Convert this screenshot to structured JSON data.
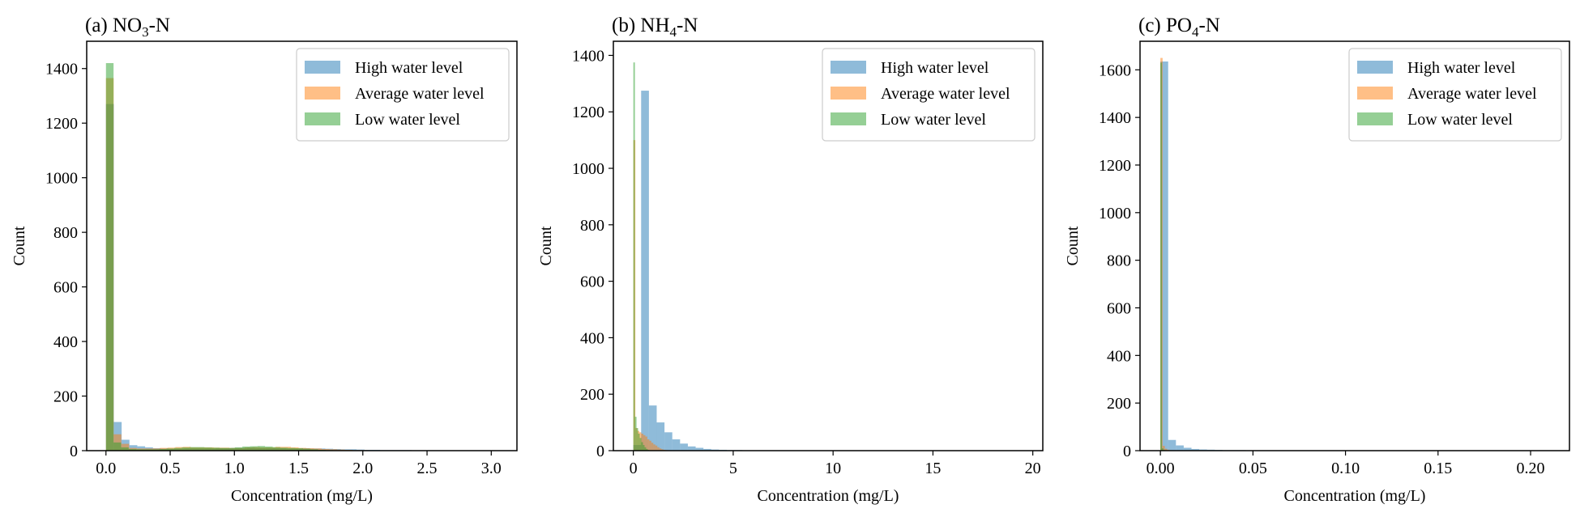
{
  "colors": {
    "high": "#1f77b4",
    "average": "#ff7f0e",
    "low": "#2ca02c"
  },
  "chart_data": [
    {
      "type": "bar",
      "title_prefix": "(a) NO",
      "title_sub": "3",
      "title_suffix": "-N",
      "xlabel": "Concentration (mg/L)",
      "ylabel": "Count",
      "xlim": [
        -0.15,
        3.2
      ],
      "ylim": [
        0,
        1500
      ],
      "xticks": [
        "0.0",
        "0.5",
        "1.0",
        "1.5",
        "2.0",
        "2.5",
        "3.0"
      ],
      "xtick_values": [
        0,
        0.5,
        1.0,
        1.5,
        2.0,
        2.5,
        3.0
      ],
      "yticks": [
        "0",
        "200",
        "400",
        "600",
        "800",
        "1000",
        "1200",
        "1400"
      ],
      "ytick_values": [
        0,
        200,
        400,
        600,
        800,
        1000,
        1200,
        1400
      ],
      "legend": "top-right",
      "series": [
        {
          "name": "High water level",
          "color_key": "high",
          "bin_start": 0,
          "bin_width": 0.061,
          "values": [
            1270,
            105,
            40,
            20,
            16,
            12,
            9,
            8,
            7,
            7,
            8,
            8,
            8,
            8,
            9,
            9,
            10,
            10,
            11,
            10,
            10,
            9,
            9,
            8,
            8,
            9,
            8,
            8,
            7,
            6,
            5,
            5,
            4,
            3,
            3,
            2,
            2,
            2,
            2,
            1,
            1,
            1,
            1,
            1,
            1,
            1,
            1,
            1,
            1,
            1
          ]
        },
        {
          "name": "Average water level",
          "color_key": "average",
          "bin_start": 0,
          "bin_width": 0.06,
          "values": [
            1365,
            60,
            25,
            10,
            8,
            8,
            8,
            10,
            11,
            13,
            14,
            12,
            12,
            12,
            11,
            11,
            10,
            10,
            12,
            13,
            12,
            12,
            14,
            14,
            12,
            10,
            9,
            8,
            6,
            5,
            4,
            3,
            2,
            2,
            1,
            1,
            1
          ]
        },
        {
          "name": "Low water level",
          "color_key": "low",
          "bin_start": 0,
          "bin_width": 0.059,
          "values": [
            1420,
            30,
            12,
            6,
            5,
            5,
            5,
            6,
            8,
            10,
            12,
            13,
            13,
            12,
            11,
            10,
            10,
            12,
            15,
            16,
            17,
            15,
            13,
            11,
            10,
            9,
            7,
            5,
            3,
            2,
            1
          ]
        }
      ]
    },
    {
      "type": "bar",
      "title_prefix": "(b) NH",
      "title_sub": "4",
      "title_suffix": "-N",
      "xlabel": "Concentration (mg/L)",
      "ylabel": "Count",
      "xlim": [
        -1.0,
        20.5
      ],
      "ylim": [
        0,
        1450
      ],
      "xticks": [
        "0",
        "5",
        "10",
        "15",
        "20"
      ],
      "xtick_values": [
        0,
        5,
        10,
        15,
        20
      ],
      "yticks": [
        "0",
        "200",
        "400",
        "600",
        "800",
        "1000",
        "1200",
        "1400"
      ],
      "ytick_values": [
        0,
        200,
        400,
        600,
        800,
        1000,
        1200,
        1400
      ],
      "legend": "top-right",
      "series": [
        {
          "name": "High water level",
          "color_key": "high",
          "bin_start": 0,
          "bin_width": 0.39,
          "values": [
            20,
            1275,
            160,
            100,
            65,
            40,
            25,
            15,
            10,
            6,
            4,
            3,
            2,
            2,
            1,
            1,
            1,
            1,
            1,
            1,
            1,
            1,
            0,
            0,
            0,
            0,
            0,
            0,
            0,
            0,
            0,
            0,
            0,
            0,
            0,
            0,
            0,
            0,
            0,
            0,
            0,
            0,
            0,
            0,
            0,
            0,
            0,
            0,
            0,
            1
          ]
        },
        {
          "name": "Average water level",
          "color_key": "average",
          "bin_start": 0,
          "bin_width": 0.1,
          "values": [
            1100,
            80,
            70,
            65,
            60,
            55,
            50,
            40,
            35,
            28,
            22,
            18,
            12,
            8,
            5,
            3,
            2,
            1
          ]
        },
        {
          "name": "Low water level",
          "color_key": "low",
          "bin_start": 0,
          "bin_width": 0.08,
          "values": [
            1375,
            120,
            80,
            60,
            45,
            30,
            20,
            12,
            6,
            3
          ]
        }
      ]
    },
    {
      "type": "bar",
      "title_prefix": "(c) PO",
      "title_sub": "4",
      "title_suffix": "-N",
      "xlabel": "Concentration (mg/L)",
      "ylabel": "Count",
      "xlim": [
        -0.011,
        0.221
      ],
      "ylim": [
        0,
        1720
      ],
      "xticks": [
        "0.00",
        "0.05",
        "0.10",
        "0.15",
        "0.20"
      ],
      "xtick_values": [
        0,
        0.05,
        0.1,
        0.15,
        0.2
      ],
      "yticks": [
        "0",
        "200",
        "400",
        "600",
        "800",
        "1000",
        "1200",
        "1400",
        "1600"
      ],
      "ytick_values": [
        0,
        200,
        400,
        600,
        800,
        1000,
        1200,
        1400,
        1600
      ],
      "legend": "top-right",
      "series": [
        {
          "name": "High water level",
          "color_key": "high",
          "bin_start": 0,
          "bin_width": 0.0042,
          "values": [
            1635,
            45,
            22,
            12,
            7,
            5,
            4,
            3,
            2,
            2,
            2,
            1,
            1,
            1,
            1,
            1,
            1,
            0,
            0,
            0,
            0,
            0,
            0,
            0,
            0,
            0,
            0,
            0,
            0,
            0,
            0,
            0,
            0,
            0,
            0,
            0,
            0,
            0,
            0,
            0,
            0,
            0,
            0,
            0,
            0,
            0,
            0,
            0,
            0,
            1
          ]
        },
        {
          "name": "Average water level",
          "color_key": "average",
          "bin_start": 0,
          "bin_width": 0.0012,
          "values": [
            1650,
            20,
            8,
            4,
            2,
            1
          ]
        },
        {
          "name": "Low water level",
          "color_key": "low",
          "bin_start": 0,
          "bin_width": 0.0008,
          "values": [
            1630,
            10,
            4,
            2,
            1
          ]
        }
      ]
    }
  ]
}
